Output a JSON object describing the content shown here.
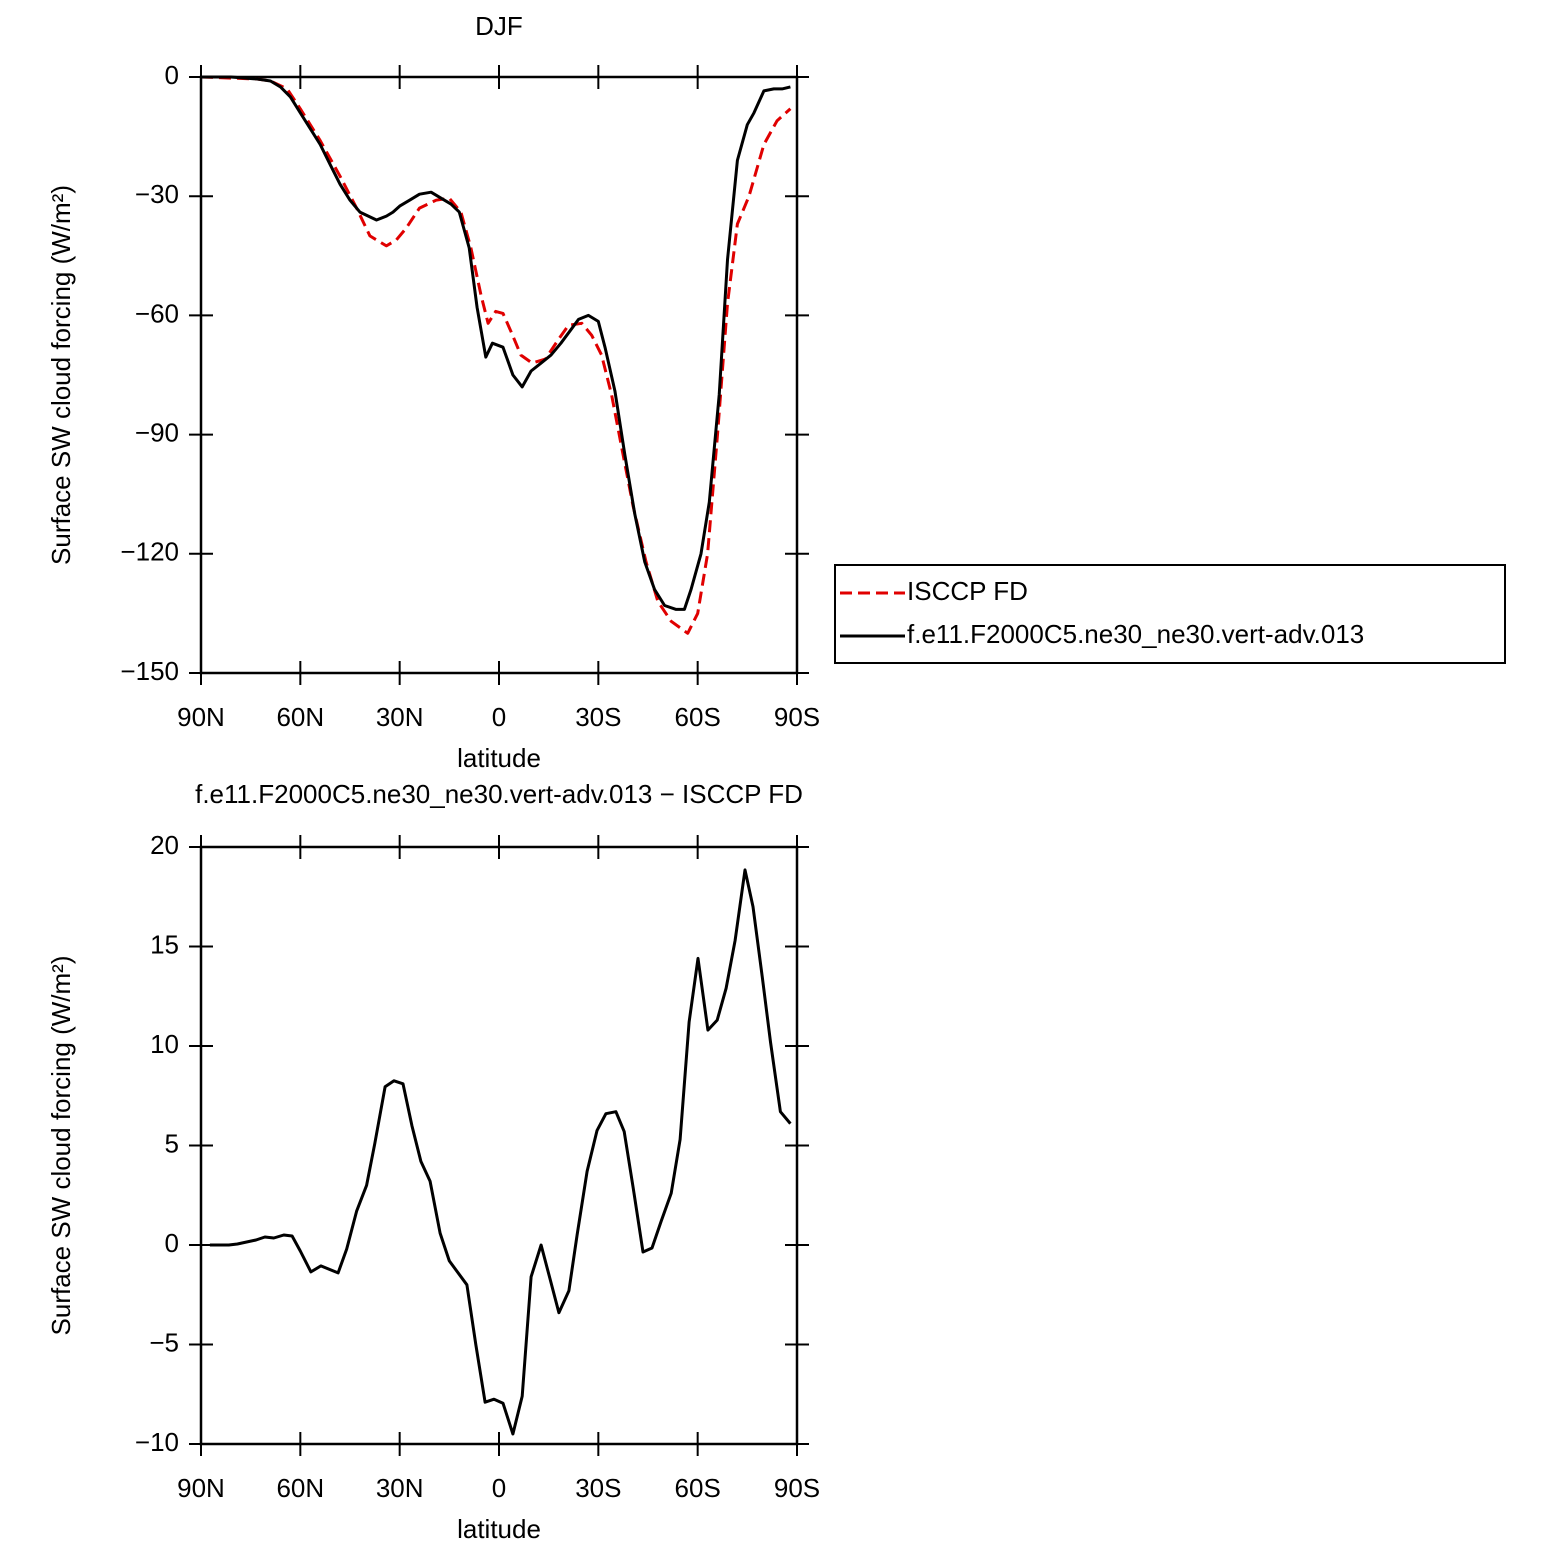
{
  "chart_data": [
    {
      "type": "line",
      "title": "DJF",
      "xlabel": "latitude",
      "ylabel": "Surface SW cloud forcing (W/m²)",
      "xlim": [
        90,
        -90
      ],
      "ylim": [
        -150,
        0
      ],
      "xticks": [
        {
          "value": 90,
          "label": "90N"
        },
        {
          "value": 60,
          "label": "60N"
        },
        {
          "value": 30,
          "label": "30N"
        },
        0,
        {
          "value": -30,
          "label": "30S"
        },
        {
          "value": -60,
          "label": "60S"
        },
        {
          "value": -90,
          "label": "90S"
        }
      ],
      "yticks": [
        0,
        {
          "value": -30,
          "label": "−30"
        },
        {
          "value": -60,
          "label": "−60"
        },
        {
          "value": -90,
          "label": "−90"
        },
        {
          "value": -120,
          "label": "−120"
        },
        {
          "value": -150,
          "label": "−150"
        }
      ],
      "legend": "right",
      "series": [
        {
          "name": "ISCCP FD",
          "color": "#e00000",
          "line_style": "dashed",
          "x": [
            90,
            73,
            69,
            64,
            60,
            54,
            48,
            43,
            39,
            34,
            31,
            28,
            24,
            19,
            15,
            11.5,
            8.5,
            5.4,
            3.3,
            1,
            -1.2,
            -3.6,
            -6.6,
            -10,
            -14,
            -18,
            -21,
            -25,
            -28,
            -31,
            -34,
            -37,
            -40.5,
            -44.4,
            -48,
            -52,
            -57,
            -60,
            -63,
            -66,
            -69,
            -72,
            -75.5,
            -80,
            -84,
            -88
          ],
          "values": [
            0,
            -0.5,
            -1,
            -3,
            -8,
            -16,
            -25,
            -33,
            -40,
            -42.5,
            -41,
            -38,
            -33,
            -31,
            -30.5,
            -34,
            -43,
            -55,
            -62,
            -59,
            -59.5,
            -64,
            -70,
            -72,
            -71,
            -66,
            -62.5,
            -62,
            -65,
            -70,
            -80,
            -93,
            -108,
            -122,
            -132,
            -137,
            -140,
            -135,
            -120,
            -90,
            -57,
            -37,
            -30,
            -17,
            -11,
            -8
          ]
        },
        {
          "name": "f.e11.F2000C5.ne30_ne30.vert-adv.013",
          "color": "#000000",
          "line_style": "solid",
          "x": [
            90,
            81,
            73,
            69,
            66,
            63,
            60,
            57,
            54,
            51,
            48,
            45,
            42,
            37,
            34,
            32,
            30,
            27,
            24,
            20.5,
            17.5,
            14.5,
            12,
            9,
            6.6,
            4,
            2,
            -1.2,
            -4.2,
            -7,
            -9.7,
            -12.7,
            -15.7,
            -18.7,
            -21.8,
            -24,
            -27,
            -30,
            -32,
            -35,
            -38,
            -41,
            -44,
            -47,
            -50,
            -53.5,
            -56,
            -58,
            -61,
            -63.5,
            -66.5,
            -69,
            -72,
            -75,
            -77,
            -80,
            -83,
            -85.5,
            -88
          ],
          "values": [
            0,
            0,
            -0.5,
            -1,
            -2.5,
            -5,
            -9,
            -13,
            -17,
            -22,
            -27,
            -31,
            -34,
            -36,
            -35,
            -34,
            -32.5,
            -31,
            -29.5,
            -29,
            -30.5,
            -32,
            -34,
            -43,
            -58,
            -70.5,
            -67,
            -68,
            -75,
            -78,
            -74,
            -72,
            -70,
            -67,
            -63.5,
            -61,
            -60,
            -61.5,
            -68,
            -79,
            -95,
            -110,
            -122,
            -129,
            -133,
            -134,
            -134,
            -129,
            -120,
            -107,
            -80,
            -46,
            -21,
            -12,
            -9,
            -3.5,
            -3,
            -3,
            -2.5
          ]
        }
      ]
    },
    {
      "type": "line",
      "title": "f.e11.F2000C5.ne30_ne30.vert-adv.013 − ISCCP FD",
      "xlabel": "latitude",
      "ylabel": "Surface SW cloud forcing (W/m²)",
      "xlim": [
        90,
        -90
      ],
      "ylim": [
        -10,
        20
      ],
      "xticks": [
        {
          "value": 90,
          "label": "90N"
        },
        {
          "value": 60,
          "label": "60N"
        },
        {
          "value": 30,
          "label": "30N"
        },
        0,
        {
          "value": -30,
          "label": "30S"
        },
        {
          "value": -60,
          "label": "60S"
        },
        {
          "value": -90,
          "label": "90S"
        }
      ],
      "yticks": [
        20,
        15,
        10,
        5,
        0,
        {
          "value": -5,
          "label": "−5"
        },
        {
          "value": -10,
          "label": "−10"
        }
      ],
      "series": [
        {
          "color": "#000000",
          "line_style": "solid",
          "x": [
            87.3,
            81.6,
            79,
            73.4,
            70.7,
            68,
            65,
            62.5,
            60,
            56.8,
            53.8,
            48.6,
            46,
            43,
            40,
            37.5,
            34.4,
            31.7,
            29,
            26.3,
            23.6,
            20.8,
            17.8,
            15,
            9.7,
            7,
            4.2,
            1.5,
            -1.2,
            -4.2,
            -7,
            -9.7,
            -12.7,
            -15.4,
            -18.1,
            -21.1,
            -23.6,
            -26.6,
            -29.6,
            -32.3,
            -35.3,
            -37.8,
            -40.5,
            -43.5,
            -46.2,
            -49,
            -52,
            -54.7,
            -57.4,
            -60.1,
            -63.1,
            -65.9,
            -68.6,
            -71.3,
            -74.3,
            -76.7,
            -79.5,
            -82,
            -85,
            -88
          ],
          "values": [
            0,
            0,
            0.05,
            0.25,
            0.4,
            0.35,
            0.5,
            0.45,
            -0.3,
            -1.35,
            -1.05,
            -1.4,
            -0.2,
            1.7,
            3,
            5.1,
            7.95,
            8.25,
            8.1,
            6,
            4.2,
            3.2,
            0.6,
            -0.8,
            -2,
            -5,
            -7.9,
            -7.75,
            -7.95,
            -9.5,
            -7.6,
            -1.6,
            0,
            -1.7,
            -3.4,
            -2.3,
            0.5,
            3.7,
            5.75,
            6.6,
            6.7,
            5.7,
            2.9,
            -0.35,
            -0.15,
            1.2,
            2.6,
            5.3,
            11.2,
            14.4,
            10.8,
            11.3,
            12.9,
            15.3,
            18.85,
            17,
            13.5,
            10.2,
            6.7,
            6.1
          ]
        }
      ]
    }
  ]
}
